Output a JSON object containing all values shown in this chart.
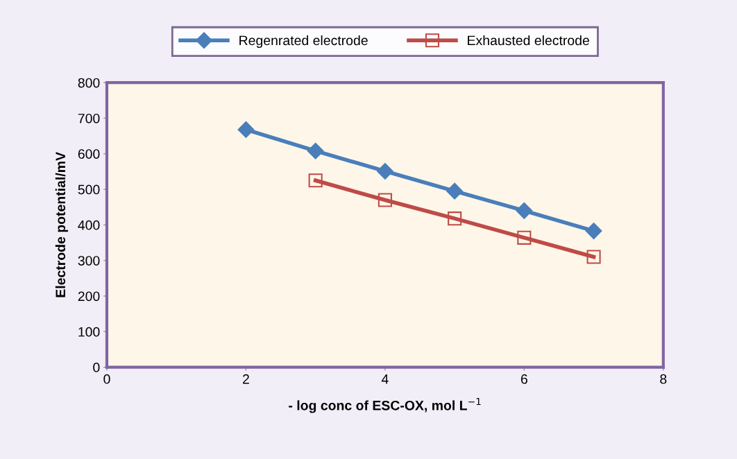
{
  "chart_data": {
    "type": "line",
    "xlabel": "- log conc of ESC-OX, mol L$^{−1}$",
    "ylabel": "Electrode potential/mV",
    "xlim": [
      0,
      8
    ],
    "xticks": [
      0,
      2,
      4,
      6,
      8
    ],
    "ylim": [
      0,
      800
    ],
    "yticks": [
      0,
      100,
      200,
      300,
      400,
      500,
      600,
      700,
      800
    ],
    "grid": false,
    "legend": "top",
    "line_style": "solid",
    "series": [
      {
        "name": "Regenrated electrode",
        "color": "#4a7ebb",
        "marker": "diamond",
        "x": [
          2,
          3,
          4,
          5,
          6,
          7
        ],
        "values": [
          668,
          608,
          551,
          495,
          440,
          383
        ]
      },
      {
        "name": "Exhausted electrode",
        "color": "#be4b48",
        "marker": "square",
        "x": [
          3,
          4,
          5,
          6,
          7
        ],
        "values": [
          525,
          470,
          418,
          364,
          310
        ]
      }
    ]
  }
}
